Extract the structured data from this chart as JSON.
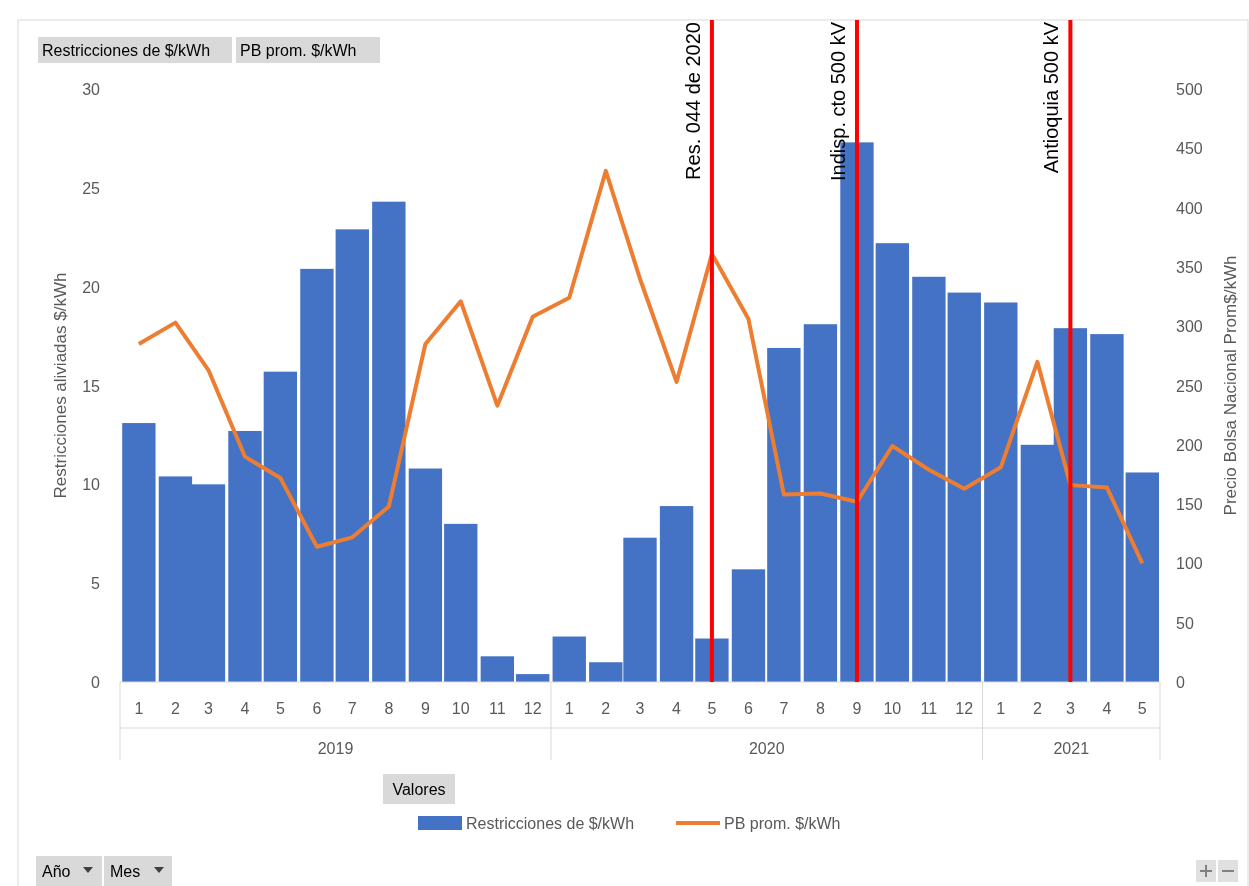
{
  "chart_data": {
    "type": "bar",
    "ylabel": "Restricciones aliviadas  $/kWh",
    "y2label": "Precio Bolsa Nacional Prom$/kWh",
    "x": [
      "2019-01",
      "2019-02",
      "2019-03",
      "2019-04",
      "2019-05",
      "2019-06",
      "2019-07",
      "2019-08",
      "2019-09",
      "2019-10",
      "2019-11",
      "2019-12",
      "2020-01",
      "2020-02",
      "2020-03",
      "2020-04",
      "2020-05",
      "2020-06",
      "2020-07",
      "2020-08",
      "2020-09",
      "2020-10",
      "2020-11",
      "2020-12",
      "2021-01",
      "2021-02",
      "2021-03",
      "2021-04",
      "2021-05"
    ],
    "xlim": [
      "2018-12-16",
      "2021-05-16"
    ],
    "xticks": [
      {
        "value": "2019-01",
        "label": "1"
      },
      {
        "value": "2019-02",
        "label": "2"
      },
      {
        "value": "2019-03",
        "label": "3"
      },
      {
        "value": "2019-04",
        "label": "4"
      },
      {
        "value": "2019-05",
        "label": "5"
      },
      {
        "value": "2019-06",
        "label": "6"
      },
      {
        "value": "2019-07",
        "label": "7"
      },
      {
        "value": "2019-08",
        "label": "8"
      },
      {
        "value": "2019-09",
        "label": "9"
      },
      {
        "value": "2019-10",
        "label": "10"
      },
      {
        "value": "2019-11",
        "label": "11"
      },
      {
        "value": "2019-12",
        "label": "12"
      },
      {
        "value": "2020-01",
        "label": "1"
      },
      {
        "value": "2020-02",
        "label": "2"
      },
      {
        "value": "2020-03",
        "label": "3"
      },
      {
        "value": "2020-04",
        "label": "4"
      },
      {
        "value": "2020-05",
        "label": "5"
      },
      {
        "value": "2020-06",
        "label": "6"
      },
      {
        "value": "2020-07",
        "label": "7"
      },
      {
        "value": "2020-08",
        "label": "8"
      },
      {
        "value": "2020-09",
        "label": "9"
      },
      {
        "value": "2020-10",
        "label": "10"
      },
      {
        "value": "2020-11",
        "label": "11"
      },
      {
        "value": "2020-12",
        "label": "12"
      },
      {
        "value": "2021-01",
        "label": "1"
      },
      {
        "value": "2021-02",
        "label": "2"
      },
      {
        "value": "2021-03",
        "label": "3"
      },
      {
        "value": "2021-04",
        "label": "4"
      },
      {
        "value": "2021-05",
        "label": "5"
      }
    ],
    "ylim": [
      0,
      30
    ],
    "yticks": [
      0,
      5,
      10,
      15,
      20,
      25,
      30
    ],
    "y2lim": [
      0,
      500
    ],
    "y2ticks": [
      0,
      50,
      100,
      150,
      200,
      250,
      300,
      350,
      400,
      450,
      500
    ],
    "series": [
      {
        "name": "Restricciones de $/kWh",
        "color": "#4472c4",
        "values": [
          13.1,
          10.4,
          10.0,
          12.7,
          15.7,
          20.9,
          22.9,
          24.3,
          10.8,
          8.0,
          1.3,
          0.4,
          2.3,
          1.0,
          7.3,
          8.9,
          2.2,
          5.7,
          16.9,
          18.1,
          27.3,
          22.2,
          20.5,
          19.7,
          19.2,
          12.0,
          17.9,
          17.6,
          10.6
        ]
      },
      {
        "name": "PB prom. $/kWh",
        "type": "line",
        "axis": "y2",
        "color": "#ed7d31",
        "values": [
          285,
          303,
          263,
          190,
          172,
          114,
          122,
          148,
          285,
          321,
          233,
          308,
          324,
          431,
          340,
          253,
          361,
          306,
          158,
          159,
          152,
          199,
          179,
          163,
          181,
          270,
          166,
          164,
          100
        ]
      }
    ],
    "ref_lines": [
      {
        "axis": "x",
        "value": "2020-05",
        "label": "Res. 044 de 2020",
        "color": "#ff0000"
      },
      {
        "axis": "x",
        "value": "2020-09",
        "label": "Indisp. cto 500 kV",
        "color": "#ff0000"
      },
      {
        "axis": "x",
        "value": "2021-03",
        "label": "Antioquia 500 kV",
        "color": "#ff0000"
      }
    ],
    "annotations": [
      "2019",
      "2020",
      "2021",
      "Valores",
      "Año",
      "Mes"
    ],
    "legend": "bottom",
    "grid": false,
    "marker": "none",
    "line_style": "solid"
  }
}
